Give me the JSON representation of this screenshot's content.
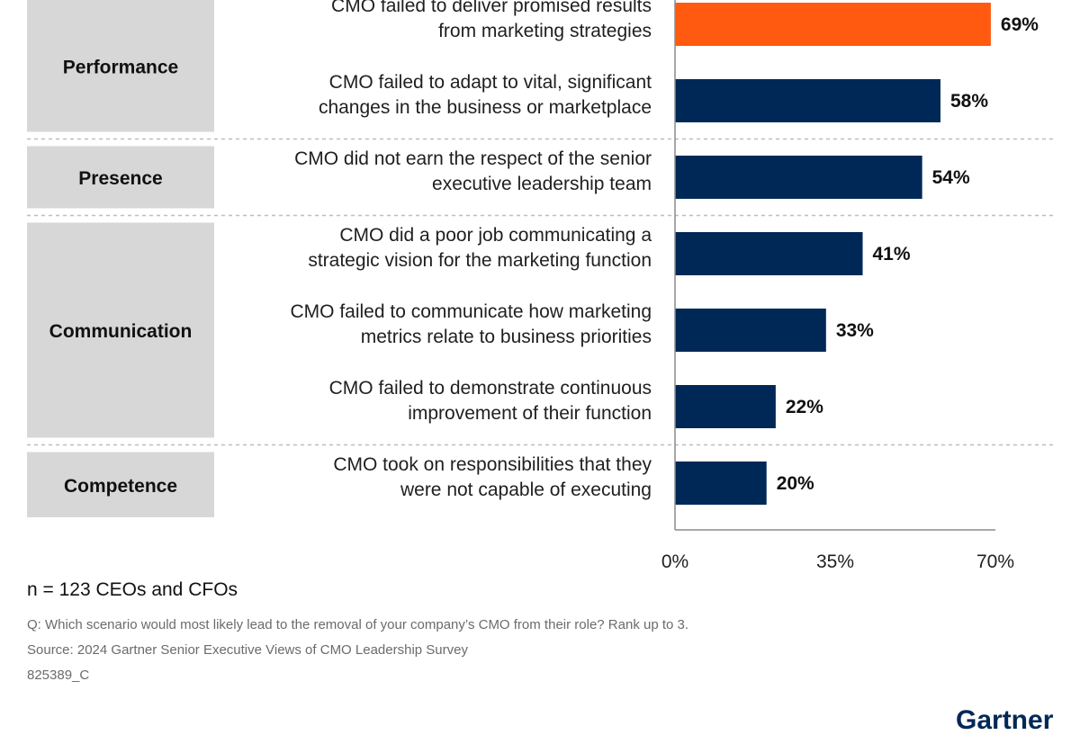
{
  "chart_data": {
    "type": "bar",
    "orientation": "horizontal",
    "groups": [
      {
        "name": "Performance",
        "categories": [
          {
            "label": [
              "CMO failed to deliver promised results",
              "from marketing strategies"
            ],
            "value": 69,
            "value_label": "69%",
            "highlight": true
          },
          {
            "label": [
              "CMO failed to adapt to vital, significant",
              "changes in the business or marketplace"
            ],
            "value": 58,
            "value_label": "58%"
          }
        ]
      },
      {
        "name": "Presence",
        "categories": [
          {
            "label": [
              "CMO did not earn the respect of the senior",
              "executive leadership team"
            ],
            "value": 54,
            "value_label": "54%"
          }
        ]
      },
      {
        "name": "Communication",
        "categories": [
          {
            "label": [
              "CMO did a poor job communicating a",
              "strategic vision for the marketing function"
            ],
            "value": 41,
            "value_label": "41%"
          },
          {
            "label": [
              "CMO failed to communicate how marketing",
              "metrics relate to business priorities"
            ],
            "value": 33,
            "value_label": "33%"
          },
          {
            "label": [
              "CMO failed to demonstrate continuous",
              "improvement of their function"
            ],
            "value": 22,
            "value_label": "22%"
          }
        ]
      },
      {
        "name": "Competence",
        "categories": [
          {
            "label": [
              "CMO took on responsibilities that they",
              "were not capable of executing"
            ],
            "value": 20,
            "value_label": "20%"
          }
        ]
      }
    ],
    "xlim": [
      0,
      70
    ],
    "xticks": [
      "0%",
      "35%",
      "70%"
    ],
    "colors": {
      "bar": "#002856",
      "highlight": "#ff5a0f",
      "group_box": "#d7d7d7",
      "separator": "#bdbdbd",
      "axis": "#8c8c8c"
    }
  },
  "footer": {
    "sample": "n = 123 CEOs and CFOs",
    "question": "Q: Which scenario would most likely lead to the removal of your company’s CMO from their role? Rank up to 3.",
    "source": "Source: 2024 Gartner Senior Executive Views of CMO Leadership Survey",
    "id": "825389_C"
  },
  "brand": {
    "logo_text": "Gartner"
  }
}
